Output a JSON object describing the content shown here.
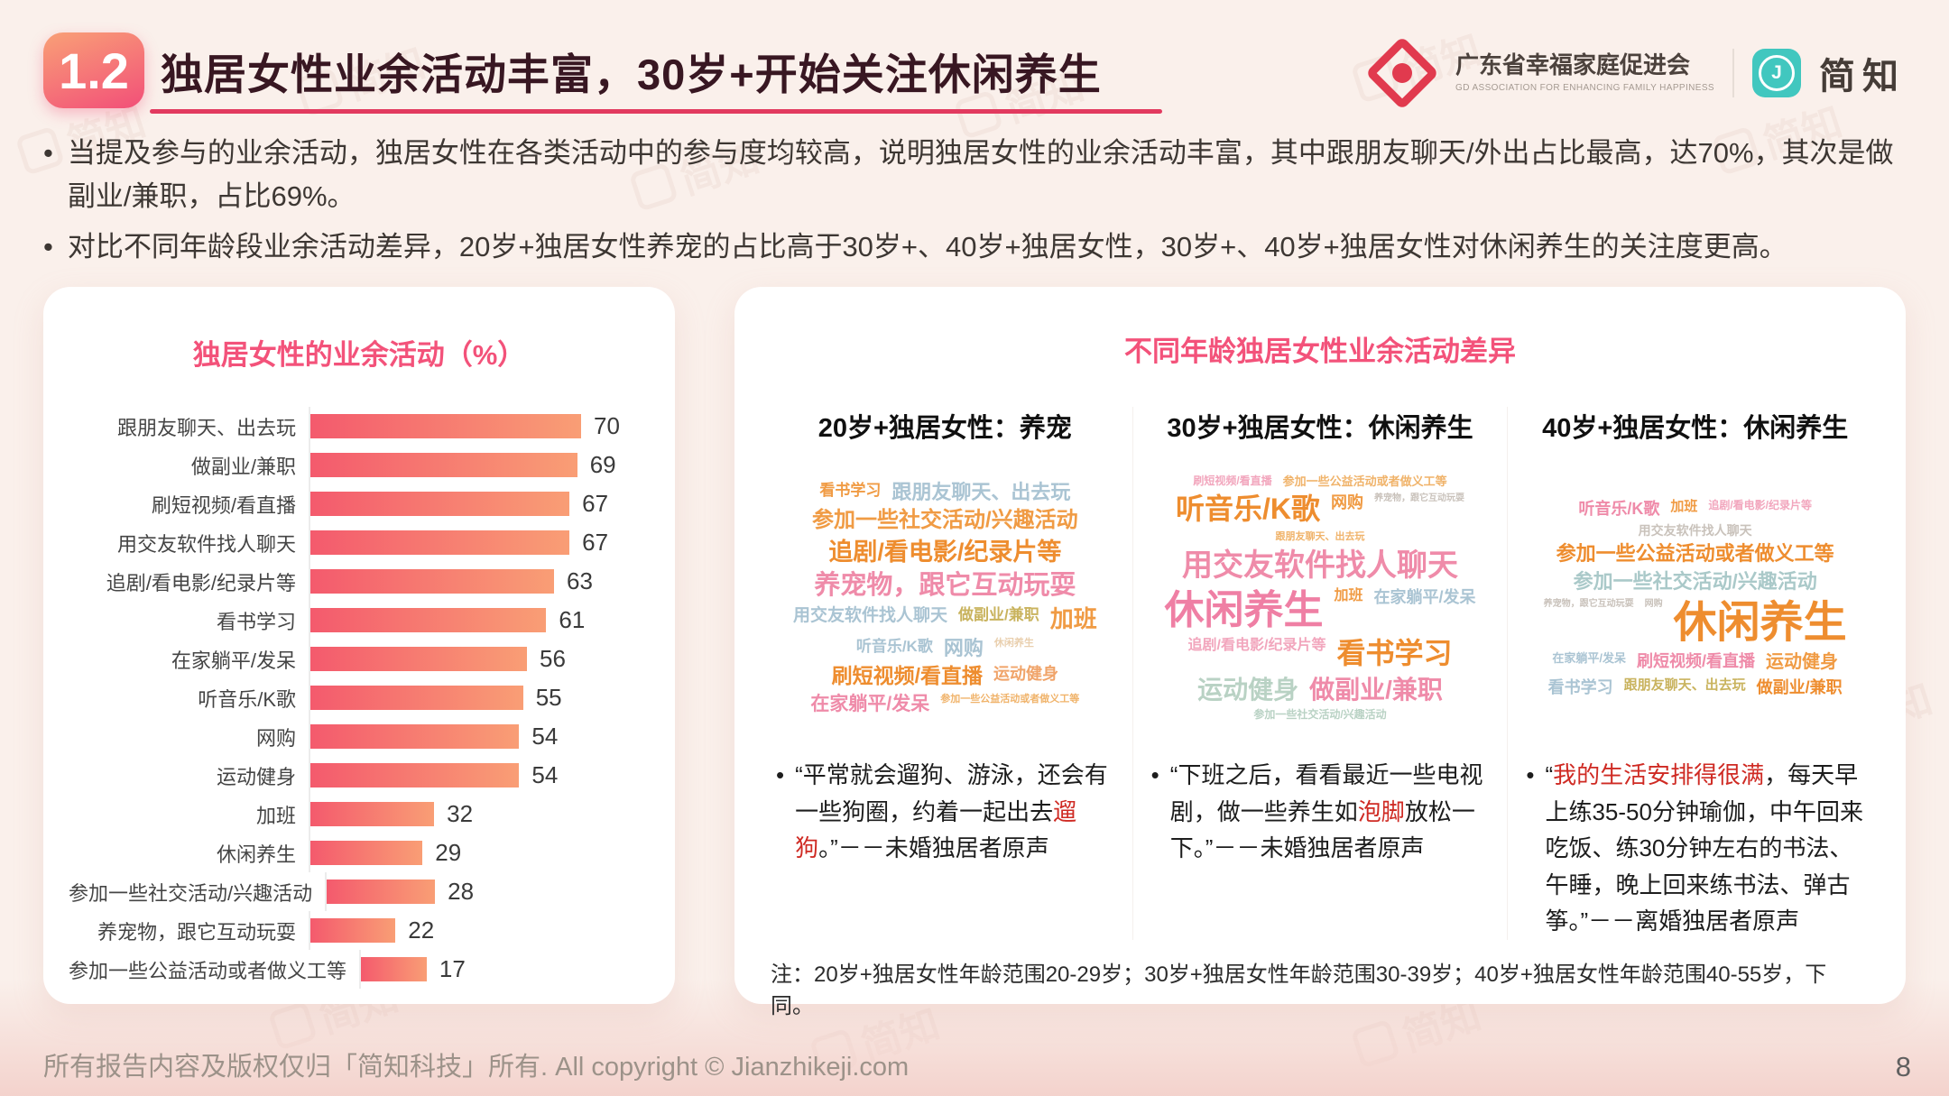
{
  "page": {
    "page_number": "8"
  },
  "header": {
    "badge": "1.2",
    "title": "独居女性业余活动丰富，30岁+开始关注休闲养生",
    "logo_org": "广东省幸福家庭促进会",
    "logo_org_sub": "GD ASSOCIATION FOR ENHANCING FAMILY HAPPINESS",
    "logo_brand": "简知",
    "logo_brand_initial": "J"
  },
  "bullets": [
    "当提及参与的业余活动，独居女性在各类活动中的参与度均较高，说明独居女性的业余活动丰富，其中跟朋友聊天/外出占比最高，达70%，其次是做副业/兼职，占比69%。",
    "对比不同年龄段业余活动差异，20岁+独居女性养宠的占比高于30岁+、40岁+独居女性，30岁+、40岁+独居女性对休闲养生的关注度更高。"
  ],
  "chart_data": {
    "type": "bar",
    "orientation": "horizontal",
    "title": "独居女性的业余活动（%）",
    "categories": [
      "跟朋友聊天、出去玩",
      "做副业/兼职",
      "刷短视频/看直播",
      "用交友软件找人聊天",
      "追剧/看电影/纪录片等",
      "看书学习",
      "在家躺平/发呆",
      "听音乐/K歌",
      "网购",
      "运动健身",
      "加班",
      "休闲养生",
      "参加一些社交活动/兴趣活动",
      "养宠物，跟它互动玩耍",
      "参加一些公益活动或者做义工等"
    ],
    "values": [
      70,
      69,
      67,
      67,
      63,
      61,
      56,
      55,
      54,
      54,
      32,
      29,
      28,
      22,
      17
    ],
    "xlim": [
      0,
      70
    ],
    "grid": false,
    "value_labels": true
  },
  "right_panel": {
    "title": "不同年龄独居女性业余活动差异",
    "columns": [
      {
        "header": "20岁+独居女性：养宠",
        "cloud": [
          {
            "t": "看书学习",
            "s": 17,
            "c": "#f09b44"
          },
          {
            "t": "跟朋友聊天、出去玩",
            "s": 22,
            "c": "#aac4d3"
          },
          {
            "t": "参加一些社交活动/兴趣活动",
            "s": 24,
            "c": "#f09b44"
          },
          {
            "t": "追剧/看电影/纪录片等",
            "s": 27,
            "c": "#ee8d2f"
          },
          {
            "t": "养宠物，跟它互动玩耍",
            "s": 29,
            "c": "#ef8ba9"
          },
          {
            "t": "用交友软件找人聊天",
            "s": 19,
            "c": "#aac4d3"
          },
          {
            "t": "做副业/兼职",
            "s": 17,
            "c": "#c9b35e"
          },
          {
            "t": "加班",
            "s": 26,
            "c": "#f09b44"
          },
          {
            "t": "听音乐/K歌",
            "s": 17,
            "c": "#aac4d3"
          },
          {
            "t": "网购",
            "s": 22,
            "c": "#aac4d3"
          },
          {
            "t": "休闲养生",
            "s": 11,
            "c": "#e9cfae"
          },
          {
            "t": "刷短视频/看直播",
            "s": 23,
            "c": "#ee8d2f"
          },
          {
            "t": "运动健身",
            "s": 18,
            "c": "#f0a46a"
          },
          {
            "t": "在家躺平/发呆",
            "s": 21,
            "c": "#ef8ba9"
          },
          {
            "t": "参加一些公益活动或者做义工等",
            "s": 11,
            "c": "#f0b36a"
          }
        ],
        "quote": [
          {
            "t": "“平常就会遛狗、游泳，还会有一些狗圈，约着一起出去"
          },
          {
            "t": "遛狗",
            "hl": true
          },
          {
            "t": "。”－－未婚独居者原声"
          }
        ]
      },
      {
        "header": "30岁+独居女性：休闲养生",
        "cloud": [
          {
            "t": "刷短视频/看直播",
            "s": 12,
            "c": "#f2a6bd"
          },
          {
            "t": "参加一些公益活动或者做义工等",
            "s": 13,
            "c": "#f0b36a"
          },
          {
            "t": "听音乐/K歌",
            "s": 32,
            "c": "#ee8d2f"
          },
          {
            "t": "网购",
            "s": 18,
            "c": "#f09b44"
          },
          {
            "t": "养宠物，跟它互动玩耍",
            "s": 10,
            "c": "#c9c2bb"
          },
          {
            "t": "跟朋友聊天、出去玩",
            "s": 11,
            "c": "#f0b36a"
          },
          {
            "t": "用交友软件找人聊天",
            "s": 34,
            "c": "#ef8ba9"
          },
          {
            "t": "休闲养生",
            "s": 44,
            "c": "#ef7fa4"
          },
          {
            "t": "加班",
            "s": 16,
            "c": "#f09b44"
          },
          {
            "t": "在家躺平/发呆",
            "s": 18,
            "c": "#aac4d3"
          },
          {
            "t": "追剧/看电影/纪录片等",
            "s": 16,
            "c": "#f2a6bd"
          },
          {
            "t": "看书学习",
            "s": 32,
            "c": "#ee8d2f"
          },
          {
            "t": "运动健身",
            "s": 28,
            "c": "#b9d2c4"
          },
          {
            "t": "做副业/兼职",
            "s": 28,
            "c": "#ef8ba9"
          },
          {
            "t": "参加一些社交活动/兴趣活动",
            "s": 12,
            "c": "#b9d2c4"
          }
        ],
        "quote": [
          {
            "t": "“下班之后，看看最近一些电视剧，做一些养生如"
          },
          {
            "t": "泡脚",
            "hl": true
          },
          {
            "t": "放松一下。”－－未婚独居者原声"
          }
        ]
      },
      {
        "header": "40岁+独居女性：休闲养生",
        "cloud": [
          {
            "t": "听音乐/K歌",
            "s": 18,
            "c": "#ef8ba9"
          },
          {
            "t": "加班",
            "s": 15,
            "c": "#f09b44"
          },
          {
            "t": "追剧/看电影/纪录片等",
            "s": 12,
            "c": "#f2a6bd"
          },
          {
            "t": "用交友软件找人聊天",
            "s": 14,
            "c": "#c9c2bb"
          },
          {
            "t": "参加一些公益活动或者做义工等",
            "s": 22,
            "c": "#ee8d2f"
          },
          {
            "t": "参加一些社交活动/兴趣活动",
            "s": 22,
            "c": "#aac9c9"
          },
          {
            "t": "养宠物，跟它互动玩耍",
            "s": 10,
            "c": "#c9c2bb"
          },
          {
            "t": "网购",
            "s": 10,
            "c": "#c9c2bb"
          },
          {
            "t": "休闲养生",
            "s": 48,
            "c": "#ee8d2f"
          },
          {
            "t": "在家躺平/发呆",
            "s": 13,
            "c": "#aac4d3"
          },
          {
            "t": "刷短视频/看直播",
            "s": 18,
            "c": "#ef8ba9"
          },
          {
            "t": "运动健身",
            "s": 20,
            "c": "#f09b44"
          },
          {
            "t": "看书学习",
            "s": 18,
            "c": "#aac4d3"
          },
          {
            "t": "跟朋友聊天、出去玩",
            "s": 15,
            "c": "#c9b35e"
          },
          {
            "t": "做副业/兼职",
            "s": 18,
            "c": "#ee8d2f"
          }
        ],
        "quote": [
          {
            "t": "“"
          },
          {
            "t": "我的生活安排得很满",
            "hl": true
          },
          {
            "t": "，每天早上练35-50分钟瑜伽，中午回来吃饭、练30分钟左右的书法、午睡，晚上回来练书法、弹古筝。”－－离婚独居者原声"
          }
        ]
      }
    ],
    "note": "注：20岁+独居女性年龄范围20-29岁；30岁+独居女性年龄范围30-39岁；40岁+独居女性年龄范围40-55岁，下同。"
  },
  "footer": {
    "copyright": "所有报告内容及版权仅归「简知科技」所有.   All copyright © Jianzhikeji.com"
  },
  "watermark": {
    "text": "简知"
  },
  "colors": {
    "accent_pink": "#f3527a",
    "bar_gradient_from": "#f45a6d",
    "bar_gradient_to": "#f99e75",
    "highlight_red": "#cf2a23",
    "title_maroon": "#381722",
    "underline": "#e23a5f",
    "badge_gradient_from": "#f9a077",
    "badge_gradient_to": "#f24f78",
    "brand_teal": "#41c7bf",
    "org_logo_red": "#e13a4e",
    "background": "#faf0eb"
  }
}
